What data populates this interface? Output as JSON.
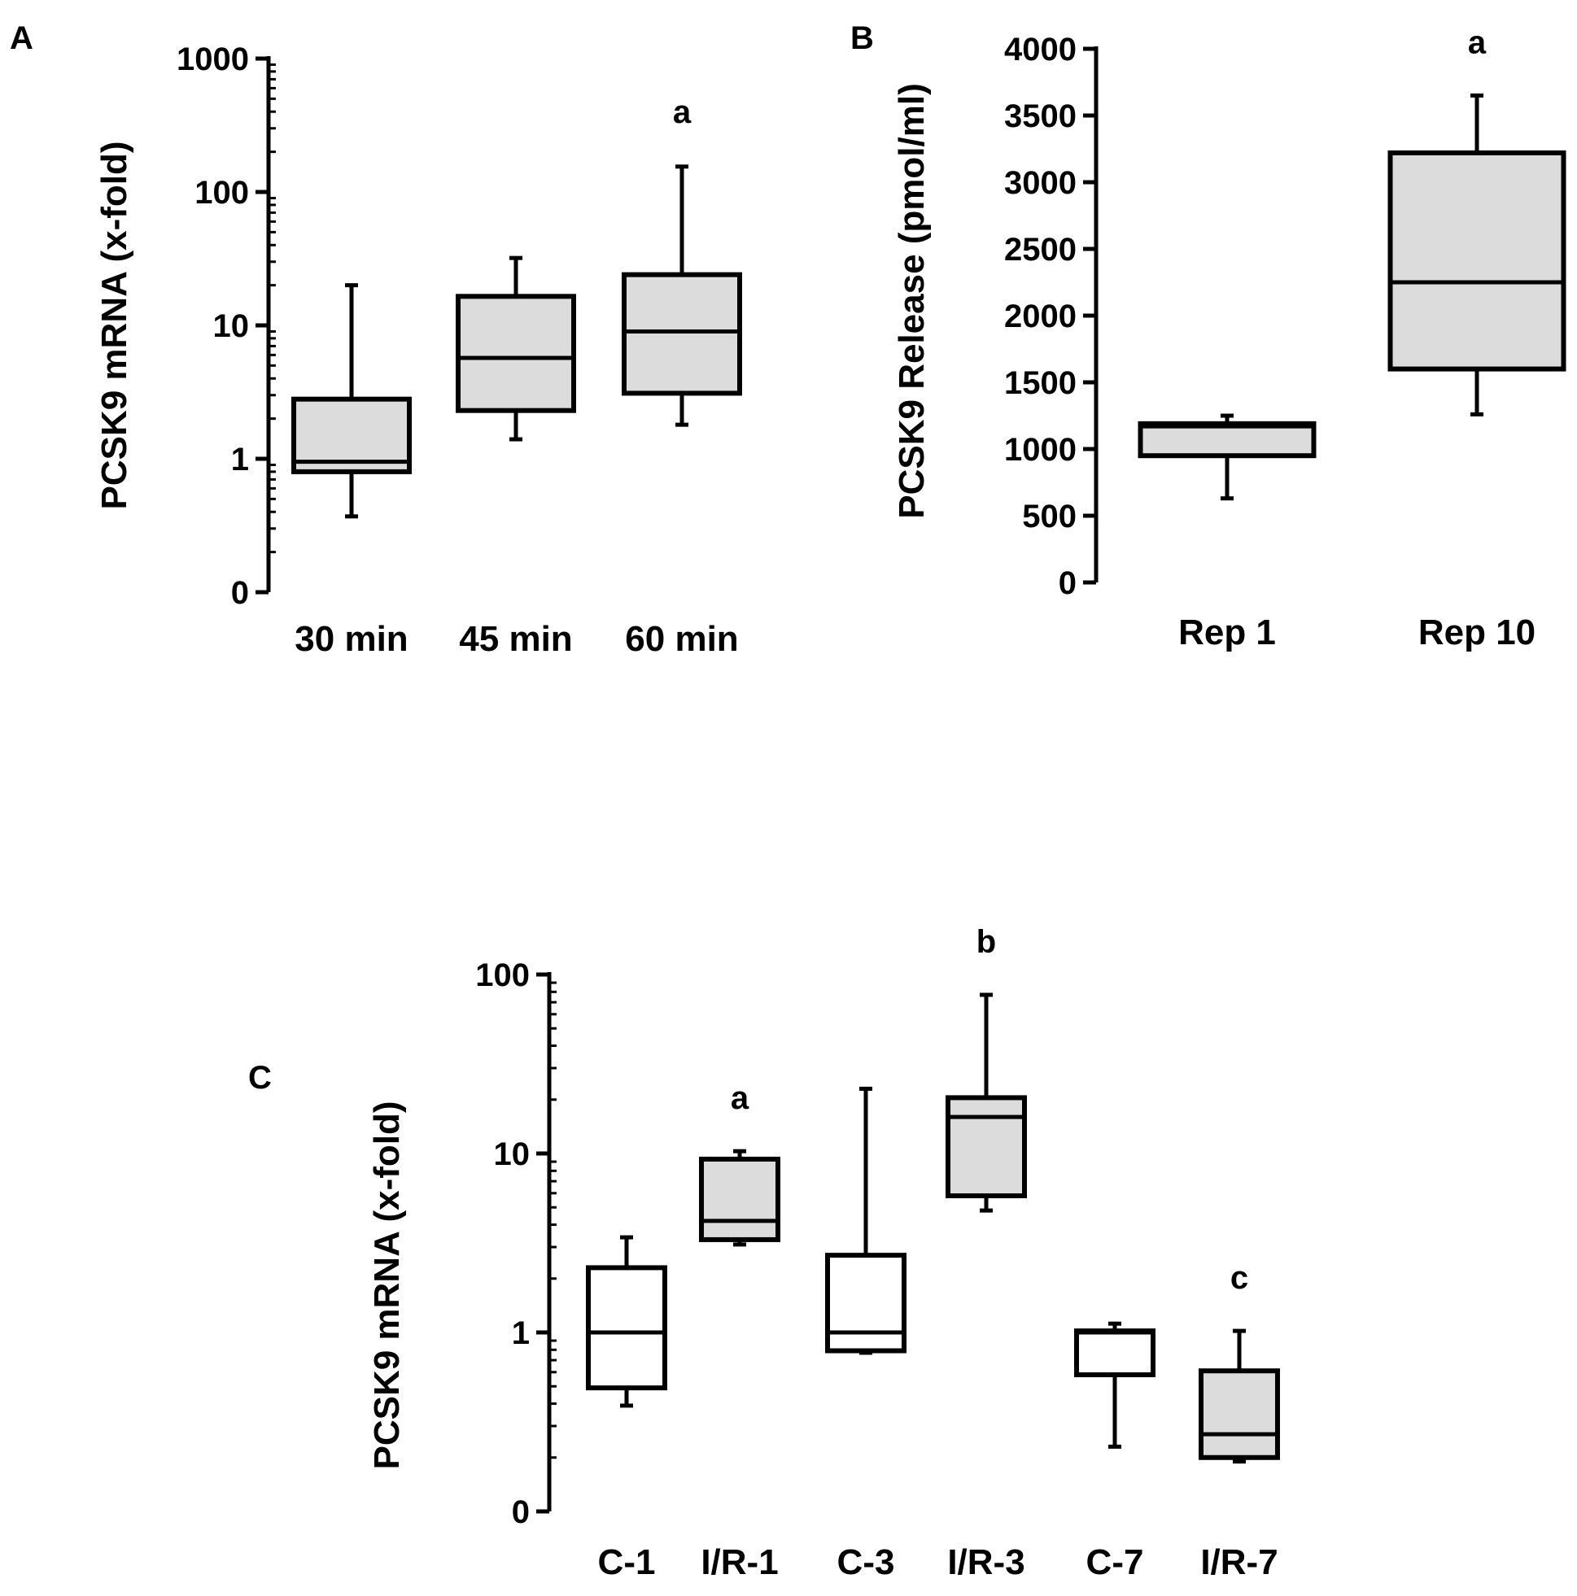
{
  "chart_data": [
    {
      "panel": "A",
      "type": "box",
      "ylabel": "PCSK9 mRNA (x-fold)",
      "yscale": "log",
      "yticks": [
        {
          "label": "0",
          "value": 0.1
        },
        {
          "label": "1",
          "value": 1
        },
        {
          "label": "10",
          "value": 10
        },
        {
          "label": "100",
          "value": 100
        },
        {
          "label": "1000",
          "value": 1000
        }
      ],
      "ylim": [
        0.1,
        1000
      ],
      "categories": [
        "30 min",
        "45 min",
        "60 min"
      ],
      "boxes": [
        {
          "category": "30 min",
          "min": 0.37,
          "q1": 0.8,
          "median": 0.95,
          "q3": 2.8,
          "max": 20,
          "fill": "#dcdcdc",
          "annotation": ""
        },
        {
          "category": "45 min",
          "min": 1.4,
          "q1": 2.3,
          "median": 5.7,
          "q3": 16.5,
          "max": 32,
          "fill": "#dcdcdc",
          "annotation": ""
        },
        {
          "category": "60 min",
          "min": 1.8,
          "q1": 3.1,
          "median": 9,
          "q3": 24,
          "max": 155,
          "fill": "#dcdcdc",
          "annotation": "a"
        }
      ]
    },
    {
      "panel": "B",
      "type": "box",
      "ylabel": "PCSK9 Release (pmol/ml)",
      "yscale": "linear",
      "yticks": [
        {
          "label": "0",
          "value": 0
        },
        {
          "label": "500",
          "value": 500
        },
        {
          "label": "1000",
          "value": 1000
        },
        {
          "label": "1500",
          "value": 1500
        },
        {
          "label": "2000",
          "value": 2000
        },
        {
          "label": "2500",
          "value": 2500
        },
        {
          "label": "3000",
          "value": 3000
        },
        {
          "label": "3500",
          "value": 3500
        },
        {
          "label": "4000",
          "value": 4000
        }
      ],
      "ylim": [
        0,
        4000
      ],
      "categories": [
        "Rep 1",
        "Rep 10"
      ],
      "boxes": [
        {
          "category": "Rep 1",
          "min": 630,
          "q1": 950,
          "median": 1170,
          "q3": 1190,
          "max": 1250,
          "fill": "#dcdcdc",
          "annotation": ""
        },
        {
          "category": "Rep 10",
          "min": 1260,
          "q1": 1600,
          "median": 2250,
          "q3": 3220,
          "max": 3650,
          "fill": "#dcdcdc",
          "annotation": "a"
        }
      ]
    },
    {
      "panel": "C",
      "type": "box",
      "ylabel": "PCSK9 mRNA (x-fold)",
      "yscale": "log",
      "yticks": [
        {
          "label": "0",
          "value": 0.1
        },
        {
          "label": "1",
          "value": 1
        },
        {
          "label": "10",
          "value": 10
        },
        {
          "label": "100",
          "value": 100
        }
      ],
      "ylim": [
        0.1,
        100
      ],
      "categories": [
        "C-1",
        "I/R-1",
        "C-3",
        "I/R-3",
        "C-7",
        "I/R-7"
      ],
      "boxes": [
        {
          "category": "C-1",
          "min": 0.39,
          "q1": 0.49,
          "median": 1.0,
          "q3": 2.3,
          "max": 3.4,
          "fill": "#ffffff",
          "annotation": ""
        },
        {
          "category": "I/R-1",
          "min": 3.1,
          "q1": 3.3,
          "median": 4.2,
          "q3": 9.3,
          "max": 10.3,
          "fill": "#dcdcdc",
          "annotation": "a"
        },
        {
          "category": "C-3",
          "min": 0.77,
          "q1": 0.79,
          "median": 1.0,
          "q3": 2.7,
          "max": 23,
          "fill": "#ffffff",
          "annotation": ""
        },
        {
          "category": "I/R-3",
          "min": 4.8,
          "q1": 5.8,
          "median": 16,
          "q3": 20.5,
          "max": 77,
          "fill": "#dcdcdc",
          "annotation": "b"
        },
        {
          "category": "C-7",
          "min": 0.23,
          "q1": 0.58,
          "median": 1.0,
          "q3": 1.02,
          "max": 1.12,
          "fill": "#ffffff",
          "annotation": ""
        },
        {
          "category": "I/R-7",
          "min": 0.19,
          "q1": 0.2,
          "median": 0.27,
          "q3": 0.61,
          "max": 1.02,
          "fill": "#dcdcdc",
          "annotation": "c"
        }
      ]
    }
  ]
}
